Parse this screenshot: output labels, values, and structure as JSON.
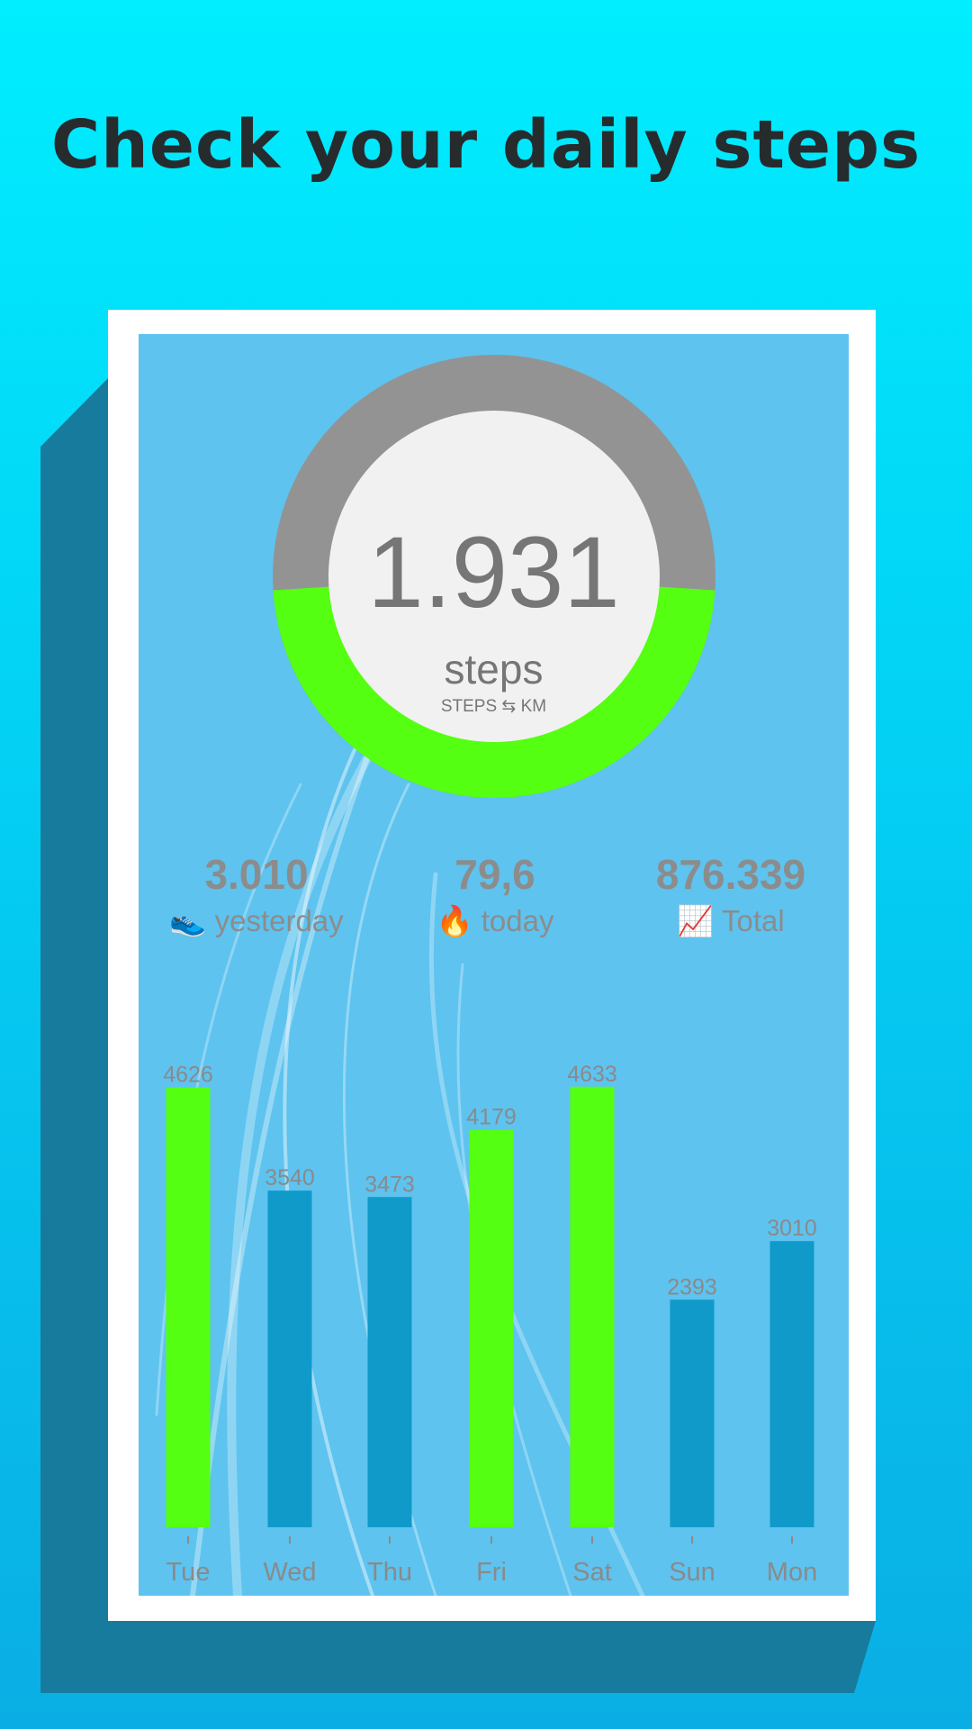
{
  "headline": "Check your daily steps",
  "gauge": {
    "value": "1.931",
    "unit": "steps",
    "toggle": "STEPS ⇆ KM",
    "progress": 0.48,
    "colors": {
      "progress": "#55ff11",
      "remaining": "#939393",
      "center": "#f1f1f1"
    }
  },
  "stats": [
    {
      "value": "3.010",
      "icon": "sneaker-icon",
      "emoji": "👟",
      "label": "yesterday"
    },
    {
      "value": "79,6",
      "icon": "fire-icon",
      "emoji": "🔥",
      "label": "today"
    },
    {
      "value": "876.339",
      "icon": "chart-increasing-icon",
      "emoji": "📈",
      "label": "Total"
    }
  ],
  "chart_data": {
    "type": "bar",
    "categories": [
      "Tue",
      "Wed",
      "Thu",
      "Fri",
      "Sat",
      "Sun",
      "Mon"
    ],
    "values": [
      4626,
      3540,
      3473,
      4179,
      4633,
      2393,
      3010
    ],
    "labels": [
      "4626",
      "3540",
      "3473",
      "4179",
      "4633",
      "2393",
      "3010"
    ],
    "goal_reached": [
      true,
      false,
      false,
      true,
      true,
      false,
      false
    ],
    "ylim": [
      0,
      5000
    ],
    "colors": {
      "goal": "#55ff11",
      "normal": "#0f9aca",
      "text": "#8a8a8a"
    }
  }
}
